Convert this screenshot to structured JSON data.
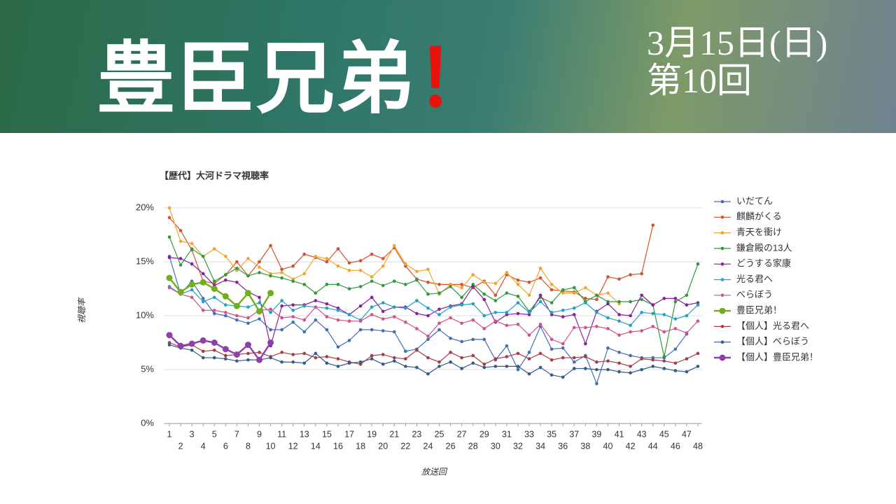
{
  "header": {
    "title": "豊臣兄弟",
    "exclamation": "！",
    "date": "3月15日(日)",
    "episode": "第10回"
  },
  "chart_data": {
    "type": "line",
    "title": "【歴代】大河ドラマ視聴率",
    "y_label": "視聴率",
    "x_label": "放送回",
    "x": [
      1,
      2,
      3,
      4,
      5,
      6,
      7,
      8,
      9,
      10,
      11,
      12,
      13,
      14,
      15,
      16,
      17,
      18,
      19,
      20,
      21,
      22,
      23,
      24,
      25,
      26,
      27,
      28,
      29,
      30,
      31,
      32,
      33,
      34,
      35,
      36,
      37,
      38,
      39,
      40,
      41,
      42,
      43,
      44,
      45,
      46,
      47,
      48
    ],
    "xlim": [
      1,
      48
    ],
    "xticks": [
      1,
      2,
      3,
      4,
      5,
      6,
      7,
      8,
      9,
      10,
      11,
      12,
      13,
      14,
      15,
      16,
      17,
      18,
      19,
      20,
      21,
      22,
      23,
      24,
      25,
      26,
      27,
      28,
      29,
      30,
      31,
      32,
      33,
      34,
      35,
      36,
      37,
      38,
      39,
      40,
      41,
      42,
      43,
      44,
      45,
      46,
      47,
      48
    ],
    "ylim": [
      0,
      20
    ],
    "yticks": [
      {
        "value": 0,
        "label": "0%"
      },
      {
        "value": 5,
        "label": "5%"
      },
      {
        "value": 10,
        "label": "10%"
      },
      {
        "value": 15,
        "label": "15%"
      },
      {
        "value": 20,
        "label": "20%"
      }
    ],
    "grid": true,
    "legend": "right",
    "series": [
      {
        "name": "いだてん",
        "color": "#3f6fb6",
        "values": [
          15.5,
          12.0,
          13.2,
          11.6,
          10.2,
          10.0,
          9.6,
          9.3,
          9.7,
          8.7,
          8.7,
          9.4,
          8.5,
          9.6,
          8.7,
          7.1,
          7.7,
          8.7,
          8.7,
          8.6,
          8.5,
          6.7,
          6.9,
          7.8,
          8.7,
          7.9,
          7.6,
          7.8,
          7.8,
          5.9,
          7.2,
          5.0,
          6.6,
          9.0,
          6.9,
          7.0,
          5.7,
          6.3,
          3.7,
          7.0,
          6.6,
          6.3,
          6.1,
          6.1,
          6.1,
          6.9,
          8.3,
          null
        ]
      },
      {
        "name": "麒麟がくる",
        "color": "#d4512c",
        "values": [
          19.1,
          17.9,
          16.1,
          13.2,
          13.0,
          13.8,
          15.0,
          13.7,
          15.0,
          16.5,
          14.3,
          14.6,
          15.7,
          15.4,
          15.0,
          16.2,
          14.9,
          15.1,
          15.7,
          15.3,
          16.3,
          14.6,
          13.4,
          13.1,
          12.9,
          12.9,
          12.9,
          12.6,
          13.2,
          11.9,
          13.8,
          13.3,
          13.1,
          13.5,
          12.4,
          12.3,
          12.2,
          11.6,
          11.5,
          13.6,
          13.4,
          13.8,
          13.9,
          18.4,
          null,
          null,
          null,
          null
        ]
      },
      {
        "name": "青天を衝け",
        "color": "#f0a52c",
        "values": [
          20.0,
          16.9,
          16.7,
          15.5,
          16.2,
          15.5,
          14.2,
          15.3,
          14.5,
          13.9,
          14.0,
          13.4,
          13.9,
          15.5,
          15.3,
          14.6,
          14.2,
          14.2,
          13.6,
          14.6,
          16.5,
          14.8,
          14.1,
          14.3,
          12.0,
          12.9,
          12.6,
          13.8,
          13.1,
          13.0,
          14.0,
          12.9,
          11.9,
          14.4,
          12.9,
          12.1,
          12.1,
          12.6,
          11.9,
          12.1,
          11.1,
          null,
          null,
          null,
          null,
          null,
          null,
          null
        ]
      },
      {
        "name": "鎌倉殿の13人",
        "color": "#2f9a3c",
        "values": [
          17.3,
          14.7,
          16.2,
          15.5,
          13.2,
          13.8,
          14.4,
          13.7,
          14.0,
          13.7,
          13.5,
          13.2,
          12.9,
          12.1,
          12.9,
          12.9,
          12.5,
          12.7,
          13.2,
          12.8,
          13.2,
          12.9,
          13.3,
          12.0,
          12.1,
          12.7,
          11.7,
          12.9,
          12.0,
          11.4,
          12.1,
          11.8,
          10.4,
          11.7,
          11.2,
          12.4,
          12.6,
          11.3,
          11.9,
          11.3,
          11.3,
          11.3,
          11.5,
          11.0,
          6.2,
          11.3,
          11.9,
          14.8
        ]
      },
      {
        "name": "どうする家康",
        "color": "#8a1f9c",
        "values": [
          15.4,
          15.3,
          14.8,
          13.9,
          12.8,
          13.3,
          13.1,
          12.2,
          11.7,
          7.2,
          10.9,
          11.0,
          11.0,
          11.4,
          11.1,
          10.7,
          10.1,
          10.9,
          11.7,
          10.4,
          10.8,
          10.8,
          10.2,
          10.0,
          10.6,
          10.9,
          11.1,
          12.7,
          11.5,
          9.4,
          10.1,
          10.2,
          10.1,
          11.9,
          10.1,
          9.9,
          10.1,
          7.4,
          10.4,
          11.1,
          10.1,
          10.0,
          11.9,
          11.0,
          11.6,
          11.6,
          11.0,
          11.2
        ]
      },
      {
        "name": "光る君へ",
        "color": "#1fa2c4",
        "values": [
          12.7,
          12.0,
          12.4,
          11.3,
          11.7,
          11.0,
          10.9,
          10.8,
          11.2,
          10.3,
          11.4,
          10.5,
          10.9,
          10.8,
          10.7,
          10.5,
          10.1,
          9.6,
          10.8,
          11.2,
          10.8,
          10.7,
          11.4,
          10.7,
          10.1,
          10.8,
          11.0,
          11.1,
          10.0,
          10.3,
          10.3,
          11.2,
          10.3,
          11.3,
          10.3,
          10.5,
          10.7,
          11.2,
          10.3,
          9.8,
          9.5,
          9.1,
          10.3,
          10.2,
          10.1,
          9.7,
          10.0,
          11.0
        ]
      },
      {
        "name": "べらぼう",
        "color": "#d4508c",
        "values": [
          12.6,
          12.0,
          11.7,
          10.5,
          10.5,
          10.3,
          10.0,
          9.8,
          10.5,
          10.6,
          9.8,
          9.9,
          9.6,
          10.8,
          9.9,
          9.6,
          9.5,
          9.5,
          10.1,
          9.7,
          9.9,
          9.4,
          8.8,
          8.1,
          9.3,
          9.8,
          9.3,
          9.6,
          8.8,
          9.5,
          9.1,
          9.2,
          8.2,
          9.2,
          7.8,
          7.4,
          8.9,
          8.9,
          9.0,
          8.8,
          8.2,
          8.5,
          8.6,
          9.0,
          8.5,
          8.8,
          8.4,
          9.5
        ]
      },
      {
        "name": "豊臣兄弟！",
        "color": "#6fae1c",
        "emphasis": true,
        "values": [
          13.5,
          12.2,
          12.9,
          13.1,
          12.5,
          11.8,
          10.9,
          12.1,
          10.4,
          12.1,
          null,
          null,
          null,
          null,
          null,
          null,
          null,
          null,
          null,
          null,
          null,
          null,
          null,
          null,
          null,
          null,
          null,
          null,
          null,
          null,
          null,
          null,
          null,
          null,
          null,
          null,
          null,
          null,
          null,
          null,
          null,
          null,
          null,
          null,
          null,
          null,
          null,
          null
        ]
      },
      {
        "name": "【個人】光る君へ",
        "color": "#a83c46",
        "values": [
          7.5,
          7.1,
          7.3,
          6.7,
          6.8,
          6.3,
          6.4,
          6.5,
          6.6,
          6.2,
          6.6,
          6.4,
          6.5,
          6.1,
          6.2,
          6.0,
          5.7,
          5.5,
          6.3,
          6.4,
          6.1,
          6.0,
          6.8,
          6.1,
          5.7,
          6.6,
          6.1,
          6.3,
          5.5,
          6.0,
          6.2,
          6.5,
          6.0,
          6.5,
          5.9,
          6.1,
          6.1,
          6.2,
          5.7,
          5.8,
          5.6,
          5.3,
          6.0,
          5.9,
          5.8,
          5.6,
          6.0,
          6.5
        ]
      },
      {
        "name": "【個人】べらぼう",
        "color": "#2f5c8c",
        "values": [
          7.3,
          7.0,
          6.8,
          6.1,
          6.1,
          6.0,
          5.8,
          5.9,
          5.9,
          6.1,
          5.7,
          5.7,
          5.6,
          6.5,
          5.6,
          5.3,
          5.6,
          5.7,
          6.0,
          5.5,
          5.8,
          5.3,
          5.2,
          4.6,
          5.3,
          5.7,
          5.1,
          5.6,
          5.2,
          5.3,
          5.3,
          5.3,
          4.6,
          5.2,
          4.5,
          4.3,
          5.1,
          5.1,
          5.0,
          5.0,
          4.8,
          4.7,
          5.0,
          5.3,
          5.1,
          4.9,
          4.8,
          5.3
        ]
      },
      {
        "name": "【個人】豊臣兄弟！",
        "color": "#8e3fa8",
        "emphasis": true,
        "values": [
          8.2,
          7.2,
          7.4,
          7.7,
          7.5,
          6.9,
          6.4,
          7.3,
          5.9,
          7.5,
          null,
          null,
          null,
          null,
          null,
          null,
          null,
          null,
          null,
          null,
          null,
          null,
          null,
          null,
          null,
          null,
          null,
          null,
          null,
          null,
          null,
          null,
          null,
          null,
          null,
          null,
          null,
          null,
          null,
          null,
          null,
          null,
          null,
          null,
          null,
          null,
          null,
          null
        ]
      }
    ]
  }
}
